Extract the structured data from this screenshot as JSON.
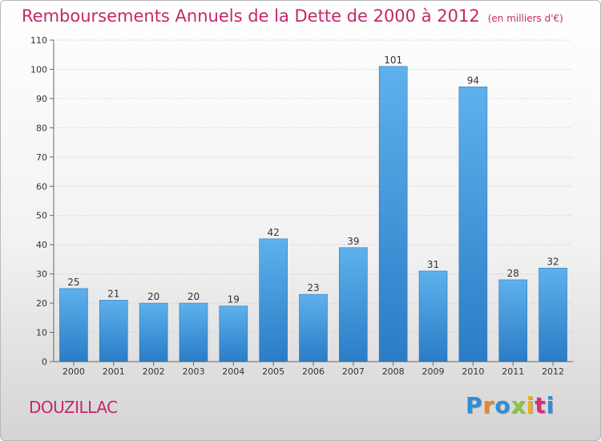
{
  "header": {
    "title": "Remboursements Annuels de la Dette de 2000 à 2012",
    "unit": "(en milliers d'€)"
  },
  "footer": {
    "commune": "DOUZILLAC",
    "logo_text": "Proxiti",
    "logo_colors": [
      "#2f8fd8",
      "#e8862a",
      "#2f8fd8",
      "#8cc63f",
      "#e8b020",
      "#d42f7a",
      "#2f8fd8"
    ]
  },
  "chart_data": {
    "type": "bar",
    "title": "Remboursements Annuels de la Dette de 2000 à 2012",
    "xlabel": "",
    "ylabel": "",
    "categories": [
      "2000",
      "2001",
      "2002",
      "2003",
      "2004",
      "2005",
      "2006",
      "2007",
      "2008",
      "2009",
      "2010",
      "2011",
      "2012"
    ],
    "values": [
      25,
      21,
      20,
      20,
      19,
      42,
      23,
      39,
      101,
      31,
      94,
      28,
      32
    ],
    "ylim": [
      0,
      110
    ],
    "yticks": [
      0,
      10,
      20,
      30,
      40,
      50,
      60,
      70,
      80,
      90,
      100,
      110
    ],
    "grid": "y-dotted",
    "bar_color": "#3d95dc"
  }
}
